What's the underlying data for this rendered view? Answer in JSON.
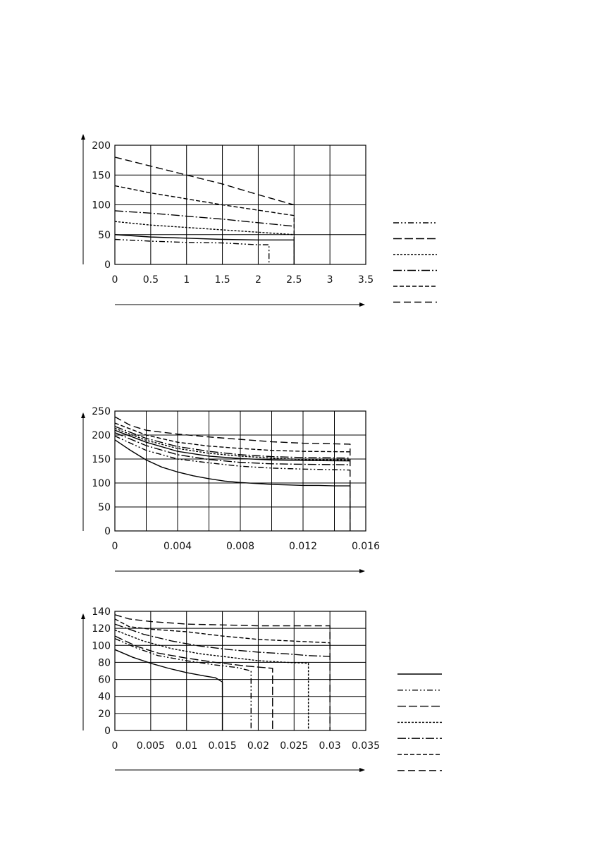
{
  "chart_data": [
    {
      "type": "line",
      "title": "",
      "xlabel": "",
      "ylabel": "",
      "xlim": [
        0,
        3.5
      ],
      "ylim": [
        0,
        200
      ],
      "grid": true,
      "legend": "right",
      "xticks": [
        0,
        0.5,
        1,
        1.5,
        2,
        2.5,
        3,
        3.5
      ],
      "xtick_labels": [
        "0",
        "0.5",
        "1",
        "1.5",
        "2",
        "2.5",
        "3",
        "3.5"
      ],
      "yticks": [
        0,
        50,
        100,
        150,
        200
      ],
      "ytick_labels": [
        "0",
        "50",
        "100",
        "150",
        "200"
      ],
      "series": [
        {
          "dash": "8,3,2,3,2,3",
          "points": [
            [
              0,
              42
            ],
            [
              0.5,
              39
            ],
            [
              1,
              37
            ],
            [
              1.5,
              36
            ],
            [
              2,
              33
            ],
            [
              2.15,
              33
            ],
            [
              2.15,
              0
            ]
          ]
        },
        {
          "dash": "",
          "points": [
            [
              0,
              50
            ],
            [
              0.5,
              46
            ],
            [
              1,
              44
            ],
            [
              1.5,
              42
            ],
            [
              2,
              41
            ],
            [
              2.5,
              41
            ],
            [
              2.5,
              0
            ]
          ]
        },
        {
          "dash": "3,2",
          "points": [
            [
              0,
              72
            ],
            [
              0.5,
              66
            ],
            [
              1,
              62
            ],
            [
              1.5,
              58
            ],
            [
              2,
              54
            ],
            [
              2.5,
              50
            ]
          ]
        },
        {
          "dash": "12,3,2,3",
          "points": [
            [
              0,
              90
            ],
            [
              0.5,
              86
            ],
            [
              1,
              81
            ],
            [
              1.5,
              76
            ],
            [
              2,
              70
            ],
            [
              2.5,
              64
            ]
          ]
        },
        {
          "dash": "6,3",
          "points": [
            [
              0,
              132
            ],
            [
              0.5,
              120
            ],
            [
              1,
              110
            ],
            [
              1.5,
              100
            ],
            [
              2,
              91
            ],
            [
              2.5,
              82
            ],
            [
              2.5,
              0
            ]
          ]
        },
        {
          "dash": "10,5",
          "points": [
            [
              0,
              180
            ],
            [
              0.5,
              165
            ],
            [
              1,
              150
            ],
            [
              1.5,
              135
            ],
            [
              2,
              117
            ],
            [
              2.5,
              100
            ]
          ]
        }
      ]
    },
    {
      "type": "line",
      "title": "",
      "xlabel": "",
      "ylabel": "",
      "xlim": [
        0,
        0.016
      ],
      "ylim": [
        0,
        250
      ],
      "grid": true,
      "legend": "",
      "xticks": [
        0,
        0.002,
        0.004,
        0.006,
        0.008,
        0.01,
        0.012,
        0.014,
        0.016
      ],
      "xtick_labels": [
        "0",
        "",
        "0.004",
        "",
        "0.008",
        "",
        "0.012",
        "",
        "0.016"
      ],
      "yticks": [
        0,
        50,
        100,
        150,
        200,
        250
      ],
      "ytick_labels": [
        "0",
        "50",
        "100",
        "150",
        "200",
        "250"
      ],
      "series": [
        {
          "dash": "",
          "points": [
            [
              0,
              190
            ],
            [
              0.001,
              168
            ],
            [
              0.002,
              148
            ],
            [
              0.003,
              133
            ],
            [
              0.004,
              123
            ],
            [
              0.005,
              115
            ],
            [
              0.006,
              109
            ],
            [
              0.007,
              104
            ],
            [
              0.008,
              101
            ],
            [
              0.009,
              99
            ],
            [
              0.01,
              97
            ],
            [
              0.011,
              96
            ],
            [
              0.012,
              95
            ],
            [
              0.013,
              95
            ],
            [
              0.014,
              94
            ],
            [
              0.015,
              94
            ],
            [
              0.015,
              0
            ]
          ]
        },
        {
          "dash": "8,3,2,3,2,3",
          "points": [
            [
              0,
              198
            ],
            [
              0.002,
              168
            ],
            [
              0.004,
              150
            ],
            [
              0.006,
              142
            ],
            [
              0.008,
              135
            ],
            [
              0.01,
              131
            ],
            [
              0.012,
              129
            ],
            [
              0.015,
              127
            ]
          ]
        },
        {
          "dash": "12,3,2,3",
          "points": [
            [
              0,
              205
            ],
            [
              0.002,
              178
            ],
            [
              0.004,
              159
            ],
            [
              0.006,
              149
            ],
            [
              0.008,
              143
            ],
            [
              0.01,
              140
            ],
            [
              0.012,
              139
            ],
            [
              0.015,
              138
            ]
          ]
        },
        {
          "dash": "",
          "points": [
            [
              0,
              210
            ],
            [
              0.002,
              185
            ],
            [
              0.004,
              166
            ],
            [
              0.006,
              156
            ],
            [
              0.008,
              151
            ],
            [
              0.01,
              148
            ],
            [
              0.012,
              147
            ],
            [
              0.015,
              146
            ]
          ]
        },
        {
          "dash": "3,2",
          "points": [
            [
              0,
              214
            ],
            [
              0.002,
              189
            ],
            [
              0.004,
              172
            ],
            [
              0.006,
              162
            ],
            [
              0.008,
              156
            ],
            [
              0.01,
              152
            ],
            [
              0.012,
              149
            ],
            [
              0.015,
              148
            ]
          ]
        },
        {
          "dash": "12,3,2,3",
          "points": [
            [
              0,
              218
            ],
            [
              0.002,
              193
            ],
            [
              0.004,
              176
            ],
            [
              0.006,
              166
            ],
            [
              0.008,
              159
            ],
            [
              0.01,
              155
            ],
            [
              0.012,
              153
            ],
            [
              0.015,
              152
            ]
          ]
        },
        {
          "dash": "6,3",
          "points": [
            [
              0,
              225
            ],
            [
              0.002,
              200
            ],
            [
              0.004,
              185
            ],
            [
              0.006,
              177
            ],
            [
              0.008,
              172
            ],
            [
              0.01,
              168
            ],
            [
              0.012,
              166
            ],
            [
              0.015,
              165
            ]
          ]
        },
        {
          "dash": "10,5",
          "points": [
            [
              0,
              238
            ],
            [
              0.001,
              220
            ],
            [
              0.002,
              210
            ],
            [
              0.004,
              202
            ],
            [
              0.006,
              196
            ],
            [
              0.008,
              191
            ],
            [
              0.01,
              186
            ],
            [
              0.012,
              183
            ],
            [
              0.015,
              181
            ],
            [
              0.015,
              0
            ]
          ]
        }
      ]
    },
    {
      "type": "line",
      "title": "",
      "xlabel": "",
      "ylabel": "",
      "xlim": [
        0,
        0.035
      ],
      "ylim": [
        0,
        140
      ],
      "grid": true,
      "legend": "right",
      "xticks": [
        0,
        0.005,
        0.01,
        0.015,
        0.02,
        0.025,
        0.03,
        0.035
      ],
      "xtick_labels": [
        "0",
        "0.005",
        "0.01",
        "0.015",
        "0.02",
        "0.025",
        "0.03",
        "0.035"
      ],
      "yticks": [
        0,
        20,
        40,
        60,
        80,
        100,
        120,
        140
      ],
      "ytick_labels": [
        "0",
        "20",
        "40",
        "60",
        "80",
        "100",
        "120",
        "140"
      ],
      "series": [
        {
          "dash": "",
          "points": [
            [
              0,
              95
            ],
            [
              0.0025,
              86
            ],
            [
              0.005,
              79
            ],
            [
              0.0075,
              73
            ],
            [
              0.01,
              68
            ],
            [
              0.0125,
              64
            ],
            [
              0.014,
              62
            ],
            [
              0.015,
              57
            ],
            [
              0.015,
              0
            ]
          ]
        },
        {
          "dash": "8,3,2,3,2,3",
          "points": [
            [
              0,
              108
            ],
            [
              0.003,
              97
            ],
            [
              0.006,
              88
            ],
            [
              0.01,
              82
            ],
            [
              0.014,
              77
            ],
            [
              0.017,
              74
            ],
            [
              0.019,
              70
            ],
            [
              0.019,
              0
            ]
          ]
        },
        {
          "dash": "12,4",
          "points": [
            [
              0,
              111
            ],
            [
              0.003,
              99
            ],
            [
              0.006,
              91
            ],
            [
              0.01,
              85
            ],
            [
              0.014,
              80
            ],
            [
              0.018,
              76
            ],
            [
              0.022,
              73
            ],
            [
              0.022,
              0
            ]
          ]
        },
        {
          "dash": "3,2",
          "points": [
            [
              0,
              118
            ],
            [
              0.004,
              105
            ],
            [
              0.008,
              96
            ],
            [
              0.012,
              90
            ],
            [
              0.016,
              86
            ],
            [
              0.02,
              82
            ],
            [
              0.024,
              80
            ],
            [
              0.027,
              79
            ],
            [
              0.027,
              0
            ]
          ]
        },
        {
          "dash": "12,3,2,3",
          "points": [
            [
              0,
              125
            ],
            [
              0.004,
              113
            ],
            [
              0.008,
              105
            ],
            [
              0.012,
              99
            ],
            [
              0.016,
              95
            ],
            [
              0.02,
              92
            ],
            [
              0.024,
              90
            ],
            [
              0.027,
              88
            ],
            [
              0.03,
              87
            ]
          ]
        },
        {
          "dash": "6,3",
          "points": [
            [
              0,
              131
            ],
            [
              0.002,
              122
            ],
            [
              0.005,
              119
            ],
            [
              0.01,
              116
            ],
            [
              0.015,
              111
            ],
            [
              0.02,
              107
            ],
            [
              0.025,
              105
            ],
            [
              0.03,
              103
            ]
          ]
        },
        {
          "dash": "10,5",
          "points": [
            [
              0,
              136
            ],
            [
              0.002,
              131
            ],
            [
              0.005,
              128
            ],
            [
              0.01,
              125
            ],
            [
              0.015,
              124
            ],
            [
              0.02,
              123
            ],
            [
              0.025,
              123
            ],
            [
              0.03,
              123
            ],
            [
              0.03,
              0
            ]
          ]
        }
      ]
    }
  ],
  "legend_samples": [
    [
      "8,3,2,3,2,3",
      "12,4",
      "3,2",
      "12,3,2,3",
      "6,3",
      "10,5"
    ],
    [],
    [
      "",
      "8,3,2,3,2,3",
      "12,4",
      "3,2",
      "12,3,2,3",
      "6,3",
      "10,5"
    ]
  ]
}
